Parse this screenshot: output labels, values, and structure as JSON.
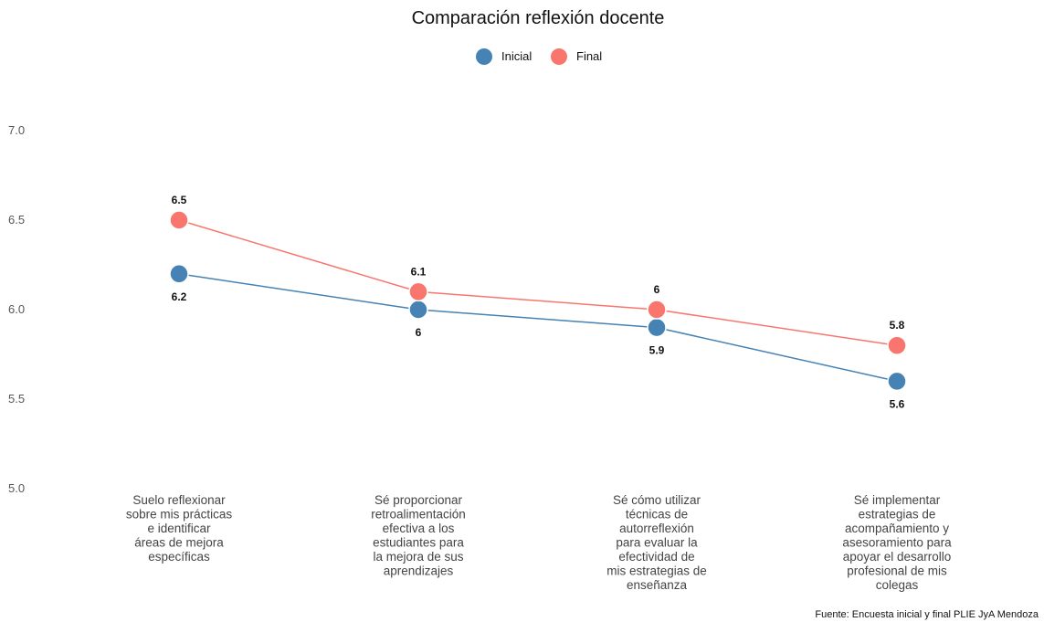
{
  "chart_data": {
    "type": "line",
    "title": "Comparación reflexión docente",
    "xlabel": "",
    "ylabel": "",
    "ylim": [
      5.0,
      7.0
    ],
    "yticks": [
      "5.0",
      "5.5",
      "6.0",
      "6.5",
      "7.0"
    ],
    "categories": [
      "Suelo reflexionar sobre mis prácticas e identificar áreas de mejora específicas",
      "Sé proporcionar retroalimentación efectiva a los estudiantes para la mejora de sus aprendizajes",
      "Sé cómo utilizar técnicas de autorreflexión para evaluar la efectividad de mis estrategias de enseñanza",
      "Sé implementar estrategias de acompañamiento y asesoramiento para apoyar el desarrollo profesional de mis colegas"
    ],
    "category_lines": [
      [
        "Suelo reflexionar",
        "sobre mis prácticas",
        "e identificar",
        "áreas de mejora",
        "específicas"
      ],
      [
        "Sé proporcionar",
        "retroalimentación",
        "efectiva a los",
        "estudiantes para",
        "la mejora de sus",
        "aprendizajes"
      ],
      [
        "Sé cómo utilizar",
        "técnicas de",
        "autorreflexión",
        "para evaluar la",
        "efectividad de",
        "mis estrategias de",
        "enseñanza"
      ],
      [
        "Sé implementar",
        "estrategias de",
        "acompañamiento y",
        "asesoramiento para",
        "apoyar el desarrollo",
        "profesional de mis",
        "colegas"
      ]
    ],
    "series": [
      {
        "name": "Inicial",
        "color": "#4682b4",
        "values": [
          6.2,
          6.0,
          5.9,
          5.6
        ],
        "labels": [
          "6.2",
          "6",
          "5.9",
          "5.6"
        ],
        "label_position": "below"
      },
      {
        "name": "Final",
        "color": "#f8766d",
        "values": [
          6.5,
          6.1,
          6.0,
          5.8
        ],
        "labels": [
          "6.5",
          "6.1",
          "6",
          "5.8"
        ],
        "label_position": "above"
      }
    ],
    "legend_position": "top",
    "grid": false,
    "caption": "Fuente: Encuesta inicial y final PLIE JyA Mendoza"
  }
}
